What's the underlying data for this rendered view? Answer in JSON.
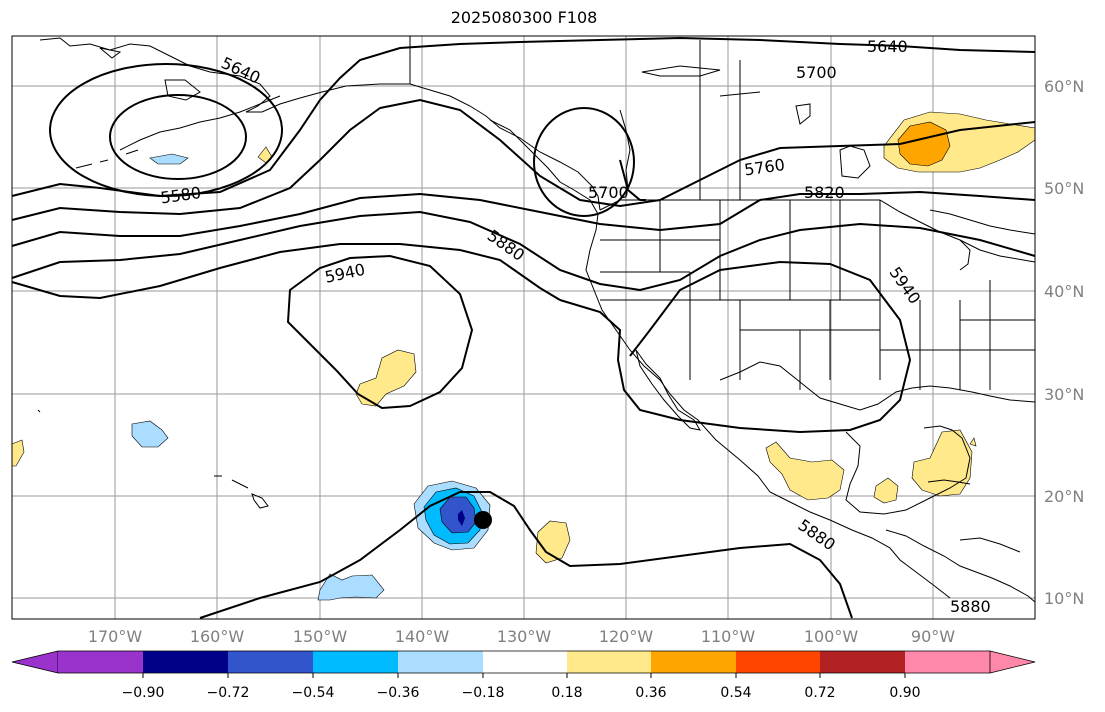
{
  "title": "2025080300 F108",
  "lat_labels": [
    "60°N",
    "50°N",
    "40°N",
    "30°N",
    "20°N",
    "10°N"
  ],
  "lon_labels": [
    "170°W",
    "160°W",
    "150°W",
    "140°W",
    "130°W",
    "120°W",
    "110°W",
    "100°W",
    "90°W"
  ],
  "contour_labels": [
    "5640",
    "5640",
    "5700",
    "5700",
    "5760",
    "5820",
    "5880",
    "5880",
    "5880",
    "5940",
    "5940",
    "5580"
  ],
  "colorbar": {
    "ticks": [
      "−0.90",
      "−0.72",
      "−0.54",
      "−0.36",
      "−0.18",
      "0.18",
      "0.36",
      "0.54",
      "0.72",
      "0.90"
    ],
    "colors": [
      "#9933cc",
      "#000088",
      "#3355cc",
      "#00bbff",
      "#aaddff",
      "#ffffff",
      "#ffe98a",
      "#ffa500",
      "#ff4500",
      "#b22222",
      "#ff88aa"
    ]
  },
  "colors": {
    "light_blue": "#aaddff",
    "blue": "#00bbff",
    "dark_blue": "#3355cc",
    "yellow": "#ffe98a",
    "orange": "#ffa500"
  }
}
